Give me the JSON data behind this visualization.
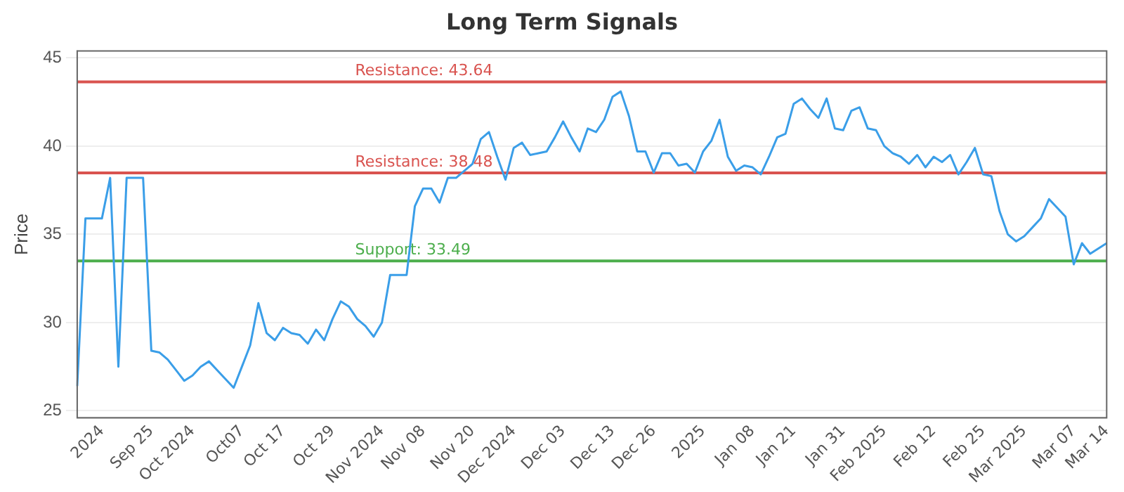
{
  "chart_data": {
    "type": "line",
    "title": "Long Term Signals",
    "ylabel": "Price",
    "categories": [
      null,
      null,
      null,
      "2024",
      null,
      null,
      null,
      null,
      null,
      "Sep 25",
      null,
      null,
      null,
      null,
      "Oct 2024",
      null,
      null,
      null,
      null,
      null,
      "Oct07",
      null,
      null,
      null,
      null,
      "Oct 17",
      null,
      null,
      null,
      null,
      null,
      "Oct 29",
      null,
      null,
      null,
      null,
      null,
      "Nov 2024",
      null,
      null,
      null,
      null,
      "Nov 08",
      null,
      null,
      null,
      null,
      null,
      "Nov 20",
      null,
      null,
      null,
      null,
      "Dec 2024",
      null,
      null,
      null,
      null,
      null,
      "Dec 03",
      null,
      null,
      null,
      null,
      null,
      "Dec 13",
      null,
      null,
      null,
      null,
      "Dec 26",
      null,
      null,
      null,
      null,
      null,
      "2025",
      null,
      null,
      null,
      null,
      null,
      "Jan 08",
      null,
      null,
      null,
      null,
      "Jan 21",
      null,
      null,
      null,
      null,
      null,
      "Jan 31",
      null,
      null,
      null,
      null,
      "Feb 2025",
      null,
      null,
      null,
      null,
      null,
      "Feb 12",
      null,
      null,
      null,
      null,
      null,
      "Feb 25",
      null,
      null,
      null,
      null,
      "Mar 2025",
      null,
      null,
      null,
      null,
      null,
      "Mar 07",
      null,
      null,
      null,
      "Mar 14"
    ],
    "series": [
      {
        "color": "#3a9ee8",
        "values": [
          26.4,
          35.9,
          35.9,
          35.9,
          38.2,
          27.5,
          38.2,
          38.2,
          38.2,
          28.4,
          28.3,
          27.9,
          27.3,
          26.7,
          27.0,
          27.5,
          27.8,
          27.3,
          26.8,
          26.3,
          27.5,
          28.7,
          31.1,
          29.4,
          29.0,
          29.7,
          29.4,
          29.3,
          28.8,
          29.6,
          29.0,
          30.2,
          31.2,
          30.9,
          30.2,
          29.8,
          29.2,
          30.0,
          32.7,
          32.7,
          32.7,
          36.6,
          37.6,
          37.6,
          36.8,
          38.2,
          38.2,
          38.6,
          39.0,
          40.4,
          40.8,
          39.4,
          38.1,
          39.9,
          40.2,
          39.5,
          39.6,
          39.7,
          40.5,
          41.4,
          40.5,
          39.7,
          41.0,
          40.8,
          41.5,
          42.8,
          43.1,
          41.7,
          39.7,
          39.7,
          38.5,
          39.6,
          39.6,
          38.9,
          39.0,
          38.5,
          39.7,
          40.3,
          41.5,
          39.4,
          38.6,
          38.9,
          38.8,
          38.4,
          39.4,
          40.5,
          40.7,
          42.4,
          42.7,
          42.1,
          41.6,
          42.7,
          41.0,
          40.9,
          42.0,
          42.2,
          41.0,
          40.9,
          40.0,
          39.6,
          39.4,
          39.0,
          39.5,
          38.8,
          39.4,
          39.1,
          39.5,
          38.4,
          39.1,
          39.9,
          38.4,
          38.3,
          36.3,
          35.0,
          34.6,
          34.9,
          35.4,
          35.9,
          37.0,
          36.5,
          36.0,
          33.3,
          34.5,
          33.9,
          34.2,
          34.5
        ]
      }
    ],
    "ylim": [
      24.6,
      45.4
    ],
    "yticks": [
      25,
      30,
      35,
      40,
      45
    ],
    "grid": "y",
    "marker": "none",
    "line_style": "solid",
    "ref_lines": [
      {
        "axis": "y",
        "value": 43.64,
        "label": "Resistance: 43.64",
        "color": "#d9534f"
      },
      {
        "axis": "y",
        "value": 38.48,
        "label": "Resistance: 38.48",
        "color": "#d9534f"
      },
      {
        "axis": "y",
        "value": 33.49,
        "label": "Support: 33.49",
        "color": "#4cae4c"
      }
    ]
  }
}
